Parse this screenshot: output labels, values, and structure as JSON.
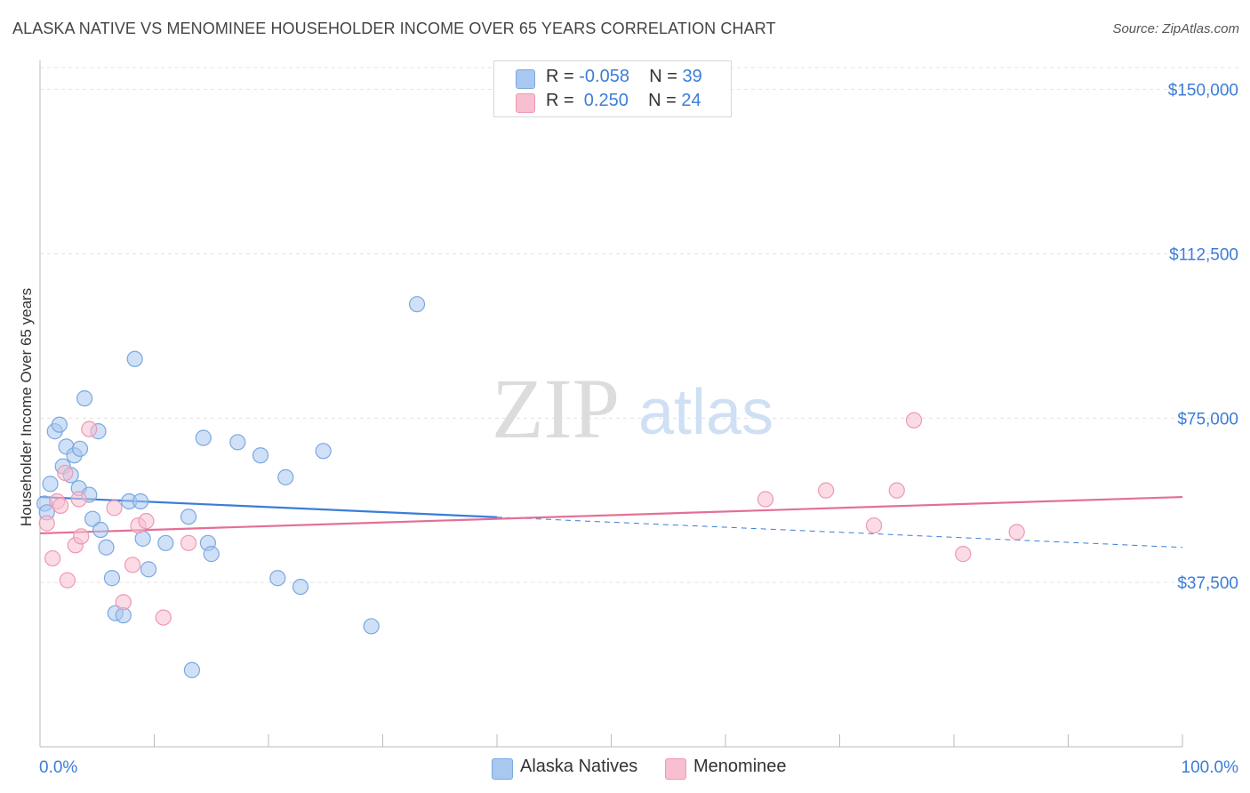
{
  "title": "ALASKA NATIVE VS MENOMINEE HOUSEHOLDER INCOME OVER 65 YEARS CORRELATION CHART",
  "source": "Source: ZipAtlas.com",
  "watermark": {
    "zip": "ZIP",
    "atlas": "atlas"
  },
  "legend": {
    "rows": [
      {
        "r_label": "R = ",
        "r_value": "-0.058",
        "n_label": "N = ",
        "n_value": "39",
        "color": "#a9c8f0",
        "border": "#7aa8e0"
      },
      {
        "r_label": "R = ",
        "r_value": " 0.250",
        "n_label": "N = ",
        "n_value": "24",
        "color": "#f7bfd0",
        "border": "#ee98b3"
      }
    ]
  },
  "bottom_legend": [
    {
      "label": "Alaska Natives",
      "color": "#a9c8f0",
      "border": "#7aa8e0"
    },
    {
      "label": "Menominee",
      "color": "#f7bfd0",
      "border": "#ee98b3"
    }
  ],
  "chart_data": {
    "type": "scatter",
    "title": "ALASKA NATIVE VS MENOMINEE HOUSEHOLDER INCOME OVER 65 YEARS CORRELATION CHART",
    "xlabel": "",
    "ylabel": "Householder Income Over 65 years",
    "xlim": [
      0,
      100
    ],
    "ylim": [
      0,
      155000
    ],
    "x_tick_labels": [
      "0.0%",
      "100.0%"
    ],
    "y_ticks": [
      37500,
      75000,
      112500,
      150000
    ],
    "y_tick_labels": [
      "$37,500",
      "$75,000",
      "$112,500",
      "$150,000"
    ],
    "grid": true,
    "legend_position": "top-center",
    "series": [
      {
        "name": "Alaska Natives",
        "color": "#3b7dd8",
        "fill": "#a9c8f0",
        "points": [
          [
            0.4,
            55500
          ],
          [
            0.6,
            53500
          ],
          [
            0.9,
            60000
          ],
          [
            1.3,
            72000
          ],
          [
            1.7,
            73500
          ],
          [
            2.0,
            64000
          ],
          [
            2.3,
            68500
          ],
          [
            2.7,
            62000
          ],
          [
            3.0,
            66500
          ],
          [
            3.4,
            59000
          ],
          [
            3.5,
            68000
          ],
          [
            3.9,
            79500
          ],
          [
            4.3,
            57500
          ],
          [
            4.6,
            52000
          ],
          [
            5.1,
            72000
          ],
          [
            5.3,
            49500
          ],
          [
            5.8,
            45500
          ],
          [
            6.3,
            38500
          ],
          [
            6.6,
            30500
          ],
          [
            7.3,
            30000
          ],
          [
            7.8,
            56000
          ],
          [
            8.3,
            88500
          ],
          [
            8.8,
            56000
          ],
          [
            9.0,
            47500
          ],
          [
            9.5,
            40500
          ],
          [
            11.0,
            46500
          ],
          [
            13.0,
            52500
          ],
          [
            13.3,
            17500
          ],
          [
            14.3,
            70500
          ],
          [
            14.7,
            46500
          ],
          [
            15.0,
            44000
          ],
          [
            17.3,
            69500
          ],
          [
            19.3,
            66500
          ],
          [
            20.8,
            38500
          ],
          [
            21.5,
            61500
          ],
          [
            22.8,
            36500
          ],
          [
            24.8,
            67500
          ],
          [
            29.0,
            27500
          ],
          [
            33.0,
            101000
          ]
        ],
        "trend": {
          "x_start": 0,
          "y_start": 57000,
          "x_end": 100,
          "y_end": 45500,
          "solid_until_x": 40
        }
      },
      {
        "name": "Menominee",
        "color": "#e46f96",
        "fill": "#f7bfd0",
        "points": [
          [
            0.6,
            51000
          ],
          [
            1.1,
            43000
          ],
          [
            1.5,
            56000
          ],
          [
            2.2,
            62500
          ],
          [
            2.4,
            38000
          ],
          [
            3.1,
            46000
          ],
          [
            3.4,
            56500
          ],
          [
            3.6,
            48000
          ],
          [
            4.3,
            72500
          ],
          [
            6.5,
            54500
          ],
          [
            7.3,
            33000
          ],
          [
            8.1,
            41500
          ],
          [
            8.6,
            50500
          ],
          [
            9.3,
            51500
          ],
          [
            10.8,
            29500
          ],
          [
            13.0,
            46500
          ],
          [
            63.5,
            56500
          ],
          [
            68.8,
            58500
          ],
          [
            73.0,
            50500
          ],
          [
            75.0,
            58500
          ],
          [
            76.5,
            74500
          ],
          [
            80.8,
            44000
          ],
          [
            85.5,
            49000
          ],
          [
            1.8,
            55000
          ]
        ],
        "trend": {
          "x_start": 0,
          "y_start": 48700,
          "x_end": 100,
          "y_end": 57000,
          "solid_until_x": 100
        }
      }
    ]
  }
}
